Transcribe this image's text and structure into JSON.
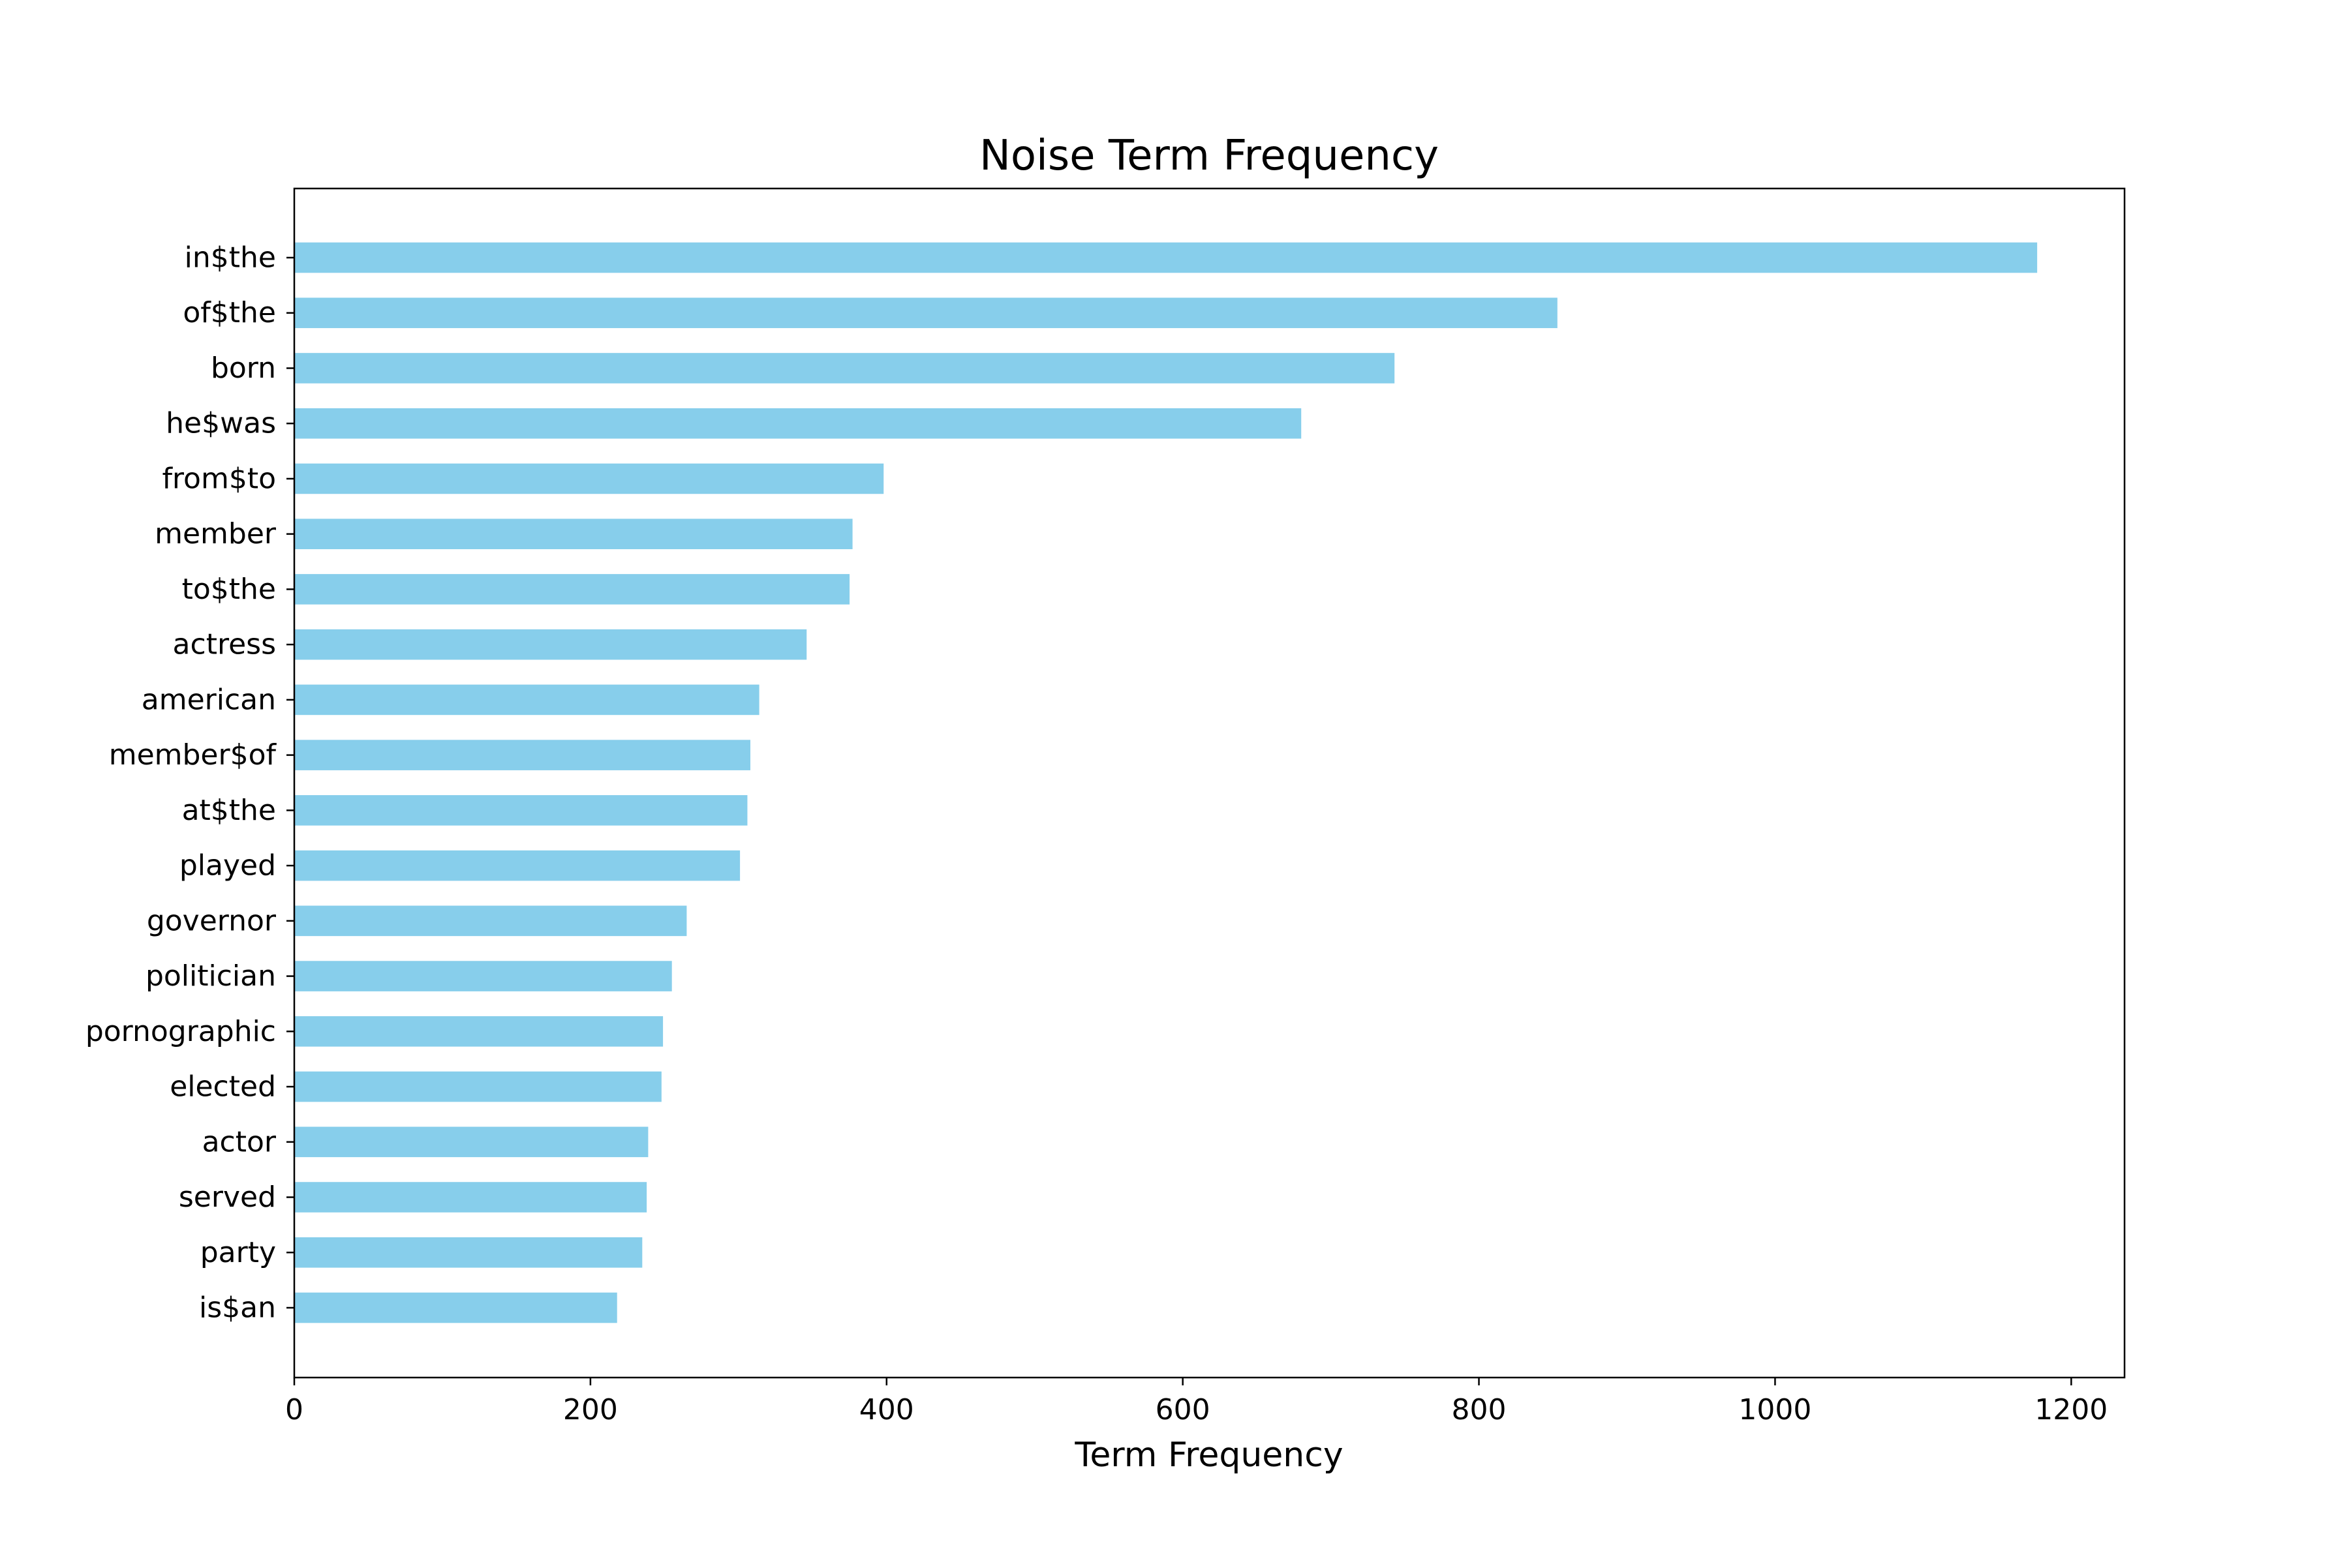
{
  "chart_data": {
    "type": "bar",
    "orientation": "horizontal",
    "title": "Noise Term Frequency",
    "xlabel": "Term Frequency",
    "ylabel": "",
    "xlim": [
      0,
      1236
    ],
    "x_ticks": [
      0,
      200,
      400,
      600,
      800,
      1000,
      1200
    ],
    "grid": false,
    "legend": "none",
    "bar_color": "#87CEEB",
    "categories": [
      "in$the",
      "of$the",
      "born",
      "he$was",
      "from$to",
      "member",
      "to$the",
      "actress",
      "american",
      "member$of",
      "at$the",
      "played",
      "governor",
      "politician",
      "pornographic",
      "elected",
      "actor",
      "served",
      "party",
      "is$an"
    ],
    "values": [
      1177,
      853,
      743,
      680,
      398,
      377,
      375,
      346,
      314,
      308,
      306,
      301,
      265,
      255,
      249,
      248,
      239,
      238,
      235,
      218
    ]
  }
}
